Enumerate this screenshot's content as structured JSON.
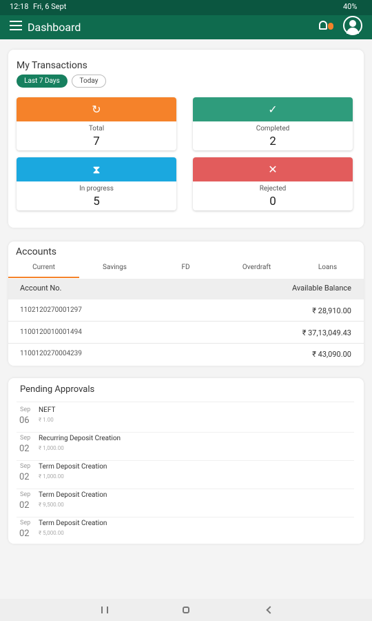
{
  "status_bar": {
    "time": "12:18",
    "date": "Fri, 6 Sept",
    "battery": "40%"
  },
  "app_bar": {
    "title": "Dashboard"
  },
  "transactions": {
    "title": "My Transactions",
    "filters": [
      "Last 7 Days",
      "Today"
    ],
    "tiles": [
      {
        "label": "Total",
        "count": 7
      },
      {
        "label": "Completed",
        "count": 2
      },
      {
        "label": "In progress",
        "count": 5
      },
      {
        "label": "Rejected",
        "count": 0
      }
    ]
  },
  "accounts": {
    "title": "Accounts",
    "tabs": [
      "Current",
      "Savings",
      "FD",
      "Overdraft",
      "Loans"
    ],
    "columns": [
      "Account No.",
      "Available Balance"
    ],
    "rows": [
      [
        "1102120270001297",
        "₹ 28,910.00"
      ],
      [
        "1100120010001494",
        "₹ 37,13,049.43"
      ],
      [
        "1100120270004239",
        "₹ 43,090.00"
      ]
    ]
  },
  "pending": {
    "title": "Pending Approvals",
    "items": [
      {
        "month": "Sep",
        "day": "06",
        "name": "NEFT",
        "amount": "₹ 1.00"
      },
      {
        "month": "Sep",
        "day": "02",
        "name": "Recurring Deposit Creation",
        "amount": "₹ 1,000.00"
      },
      {
        "month": "Sep",
        "day": "02",
        "name": "Term Deposit Creation",
        "amount": "₹ 1,000.00"
      },
      {
        "month": "Sep",
        "day": "02",
        "name": "Term Deposit Creation",
        "amount": "₹ 9,500.00"
      },
      {
        "month": "Sep",
        "day": "02",
        "name": "Term Deposit Creation",
        "amount": "₹ 5,000.00"
      }
    ]
  }
}
